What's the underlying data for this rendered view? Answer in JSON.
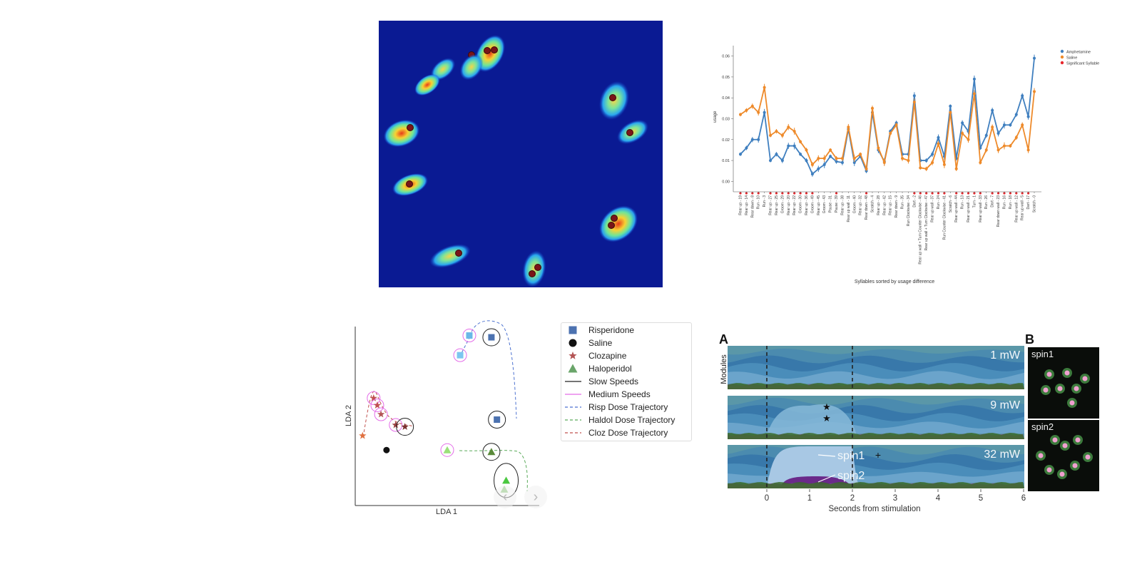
{
  "heatmap_panel": {
    "centroid_markers": 12
  },
  "usage_chart": {
    "chart_data": {
      "type": "line",
      "title": "",
      "xlabel": "Syllables sorted by usage difference",
      "ylabel": "usage",
      "ylim": [
        -0.005,
        0.065
      ],
      "yticks": [
        "0.00",
        "0.01",
        "0.02",
        "0.03",
        "0.04",
        "0.05",
        "0.06"
      ],
      "legend_position": "top-right",
      "categories": [
        "Rear up - 19",
        "Rear up - 14",
        "Rear down - 8",
        "Run - 10",
        "Run - 3",
        "Rear up - 27",
        "Rear up - 25",
        "Groom - 29",
        "Rear up - 20",
        "Rear up - 22",
        "Groom - 30",
        "Rear up - 36",
        "Groom - 49",
        "Rear up - 45",
        "Groom - 43",
        "Pause - 31",
        "Pause - 39",
        "Rear up - 38",
        "Rear up wall - 11",
        "Groom - 40",
        "Rear up - 32",
        "Rear down - 48",
        "Scratch - 4",
        "Rear up - 28",
        "Rear up - 42",
        "Rear up - 15",
        "Rear down - 9",
        "Run - 35",
        "Run Clockwise - 34",
        "Dart - 2",
        "Rear up wall + Turn Counter Clockwise - 46",
        "Rear up wall + Turn Clockwise - 47",
        "Rear up wall - 37",
        "Run - 24",
        "Run Counter Clockwise - 41",
        "Scratch - 6",
        "Rear up wall - 44",
        "Run - 13",
        "Rear up wall - 21",
        "Turn - 1",
        "Rear up wall - 33",
        "Run - 26",
        "Dart - 7",
        "Rear down wall - 23",
        "Run - 16",
        "Run - 18",
        "Rear up wall - 12",
        "Rear up wall - 5",
        "Dart - 17",
        "Scratch - 0"
      ],
      "series": [
        {
          "name": "Amphetamine",
          "color": "#3f7fbf",
          "values": [
            0.013,
            0.016,
            0.02,
            0.02,
            0.033,
            0.01,
            0.013,
            0.01,
            0.017,
            0.017,
            0.013,
            0.01,
            0.0035,
            0.006,
            0.008,
            0.012,
            0.0095,
            0.009,
            0.025,
            0.009,
            0.012,
            0.005,
            0.033,
            0.015,
            0.0095,
            0.024,
            0.028,
            0.013,
            0.013,
            0.041,
            0.01,
            0.01,
            0.013,
            0.021,
            0.012,
            0.036,
            0.011,
            0.028,
            0.024,
            0.049,
            0.016,
            0.022,
            0.034,
            0.023,
            0.027,
            0.027,
            0.032,
            0.041,
            0.031,
            0.059
          ]
        },
        {
          "name": "Saline",
          "color": "#ee8a2a",
          "values": [
            0.032,
            0.034,
            0.036,
            0.033,
            0.045,
            0.022,
            0.024,
            0.022,
            0.026,
            0.024,
            0.019,
            0.015,
            0.008,
            0.011,
            0.011,
            0.015,
            0.011,
            0.011,
            0.026,
            0.011,
            0.013,
            0.006,
            0.035,
            0.016,
            0.009,
            0.023,
            0.027,
            0.011,
            0.01,
            0.038,
            0.0065,
            0.006,
            0.009,
            0.018,
            0.008,
            0.033,
            0.006,
            0.023,
            0.02,
            0.042,
            0.009,
            0.015,
            0.026,
            0.015,
            0.017,
            0.017,
            0.021,
            0.027,
            0.015,
            0.043
          ]
        }
      ],
      "significant_marker_name": "Significant Syllable",
      "significant_marker_color": "#e8272c",
      "significant_indices": [
        0,
        1,
        2,
        3,
        5,
        6,
        7,
        8,
        9,
        10,
        11,
        12,
        16,
        21,
        29,
        30,
        31,
        32,
        33,
        34,
        36,
        37,
        38,
        39,
        40,
        42,
        43,
        44,
        45,
        46,
        47,
        48
      ]
    }
  },
  "lda_panel": {
    "chart_data": {
      "type": "scatter",
      "xlabel": "LDA 1",
      "ylabel": "LDA 2",
      "legend": [
        {
          "label": "Risperidone",
          "marker": "square",
          "color": "#4c72b0"
        },
        {
          "label": "Saline",
          "marker": "circle",
          "color": "#111111"
        },
        {
          "label": "Clozapine",
          "marker": "star",
          "color": "#b35454"
        },
        {
          "label": "Haloperidol",
          "marker": "triangle",
          "color": "#6aa56a"
        },
        {
          "label": "Slow Speeds",
          "line": "solid",
          "color": "#222222"
        },
        {
          "label": "Medium Speeds",
          "line": "solid",
          "color": "#e46ce8"
        },
        {
          "label": "Risp Dose Trajectory",
          "line": "dashed",
          "color": "#4c72d0"
        },
        {
          "label": "Haldol Dose Trajectory",
          "line": "dashed",
          "color": "#5aaa5a"
        },
        {
          "label": "Cloz Dose Trajectory",
          "line": "dashed",
          "color": "#c0504d"
        }
      ],
      "points": [
        {
          "group": "Risperidone",
          "marker": "square",
          "color": "#6ab8e8",
          "x": 0.62,
          "y": 0.95,
          "ring": "#e46ce8"
        },
        {
          "group": "Risperidone",
          "marker": "square",
          "color": "#7cc6f0",
          "x": 0.57,
          "y": 0.84,
          "ring": "#e46ce8"
        },
        {
          "group": "Risperidone",
          "marker": "square",
          "color": "#4c72b0",
          "x": 0.74,
          "y": 0.94,
          "ring": "#222222"
        },
        {
          "group": "Risperidone",
          "marker": "square",
          "color": "#4c72b0",
          "x": 0.77,
          "y": 0.48,
          "ring": "#222222"
        },
        {
          "group": "Saline",
          "marker": "circle",
          "color": "#111111",
          "x": 0.17,
          "y": 0.31,
          "ring": ""
        },
        {
          "group": "Clozapine",
          "marker": "star",
          "color": "#e07040",
          "x": 0.04,
          "y": 0.39,
          "ring": ""
        },
        {
          "group": "Clozapine",
          "marker": "star",
          "color": "#c05050",
          "x": 0.1,
          "y": 0.6,
          "ring": "#e46ce8"
        },
        {
          "group": "Clozapine",
          "marker": "star",
          "color": "#c05050",
          "x": 0.12,
          "y": 0.56,
          "ring": "#e46ce8"
        },
        {
          "group": "Clozapine",
          "marker": "star",
          "color": "#b35454",
          "x": 0.14,
          "y": 0.51,
          "ring": "#e46ce8"
        },
        {
          "group": "Clozapine",
          "marker": "star",
          "color": "#9a4040",
          "x": 0.22,
          "y": 0.45,
          "ring": "#e46ce8"
        },
        {
          "group": "Clozapine",
          "marker": "star",
          "color": "#7a3030",
          "x": 0.27,
          "y": 0.44,
          "ring": "#222222"
        },
        {
          "group": "Haloperidol",
          "marker": "triangle",
          "color": "#9be07a",
          "x": 0.5,
          "y": 0.31,
          "ring": "#e46ce8"
        },
        {
          "group": "Haloperidol",
          "marker": "triangle",
          "color": "#5a8a3a",
          "x": 0.74,
          "y": 0.3,
          "ring": "#222222"
        },
        {
          "group": "Haloperidol",
          "marker": "triangle",
          "color": "#4ac840",
          "x": 0.82,
          "y": 0.14,
          "ring": "#222222"
        },
        {
          "group": "Haloperidol",
          "marker": "triangle",
          "color": "#8ac878",
          "x": 0.81,
          "y": 0.09,
          "ring": ""
        }
      ]
    }
  },
  "optogenetics_panel": {
    "label_a": "A",
    "label_b": "B",
    "ylabel": "Modules",
    "xlabel": "Seconds from stimulation",
    "xticks": [
      "0",
      "1",
      "2",
      "3",
      "4",
      "5",
      "6"
    ],
    "rows": [
      {
        "power": "1 mW"
      },
      {
        "power": "9 mW",
        "annotation": "★"
      },
      {
        "power": "32 mW",
        "annotation": "+",
        "callouts": [
          "spin1",
          "spin2"
        ]
      }
    ],
    "thumbnails": [
      "spin1",
      "spin2"
    ]
  },
  "viewer_controls": {
    "prev_icon": "‹",
    "next_icon": "›"
  }
}
